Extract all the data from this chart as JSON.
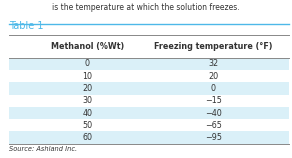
{
  "title": "Table 1",
  "title_color": "#4db8e8",
  "title_line_color": "#4db8e8",
  "header": [
    "Methanol (%Wt)",
    "Freezing temperature (°F)"
  ],
  "rows": [
    [
      "0",
      "32"
    ],
    [
      "10",
      "20"
    ],
    [
      "20",
      "0"
    ],
    [
      "30",
      "−15"
    ],
    [
      "40",
      "−40"
    ],
    [
      "50",
      "−65"
    ],
    [
      "60",
      "−95"
    ]
  ],
  "source": "Source: Ashland Inc.",
  "row_color_odd": "#daf0f8",
  "row_color_even": "#ffffff",
  "header_bg": "#ffffff",
  "text_color": "#333333",
  "header_text_color": "#333333",
  "line_color": "#888888",
  "background_color": "#ffffff",
  "title_top_text": "is the temperature at which the solution freezes."
}
